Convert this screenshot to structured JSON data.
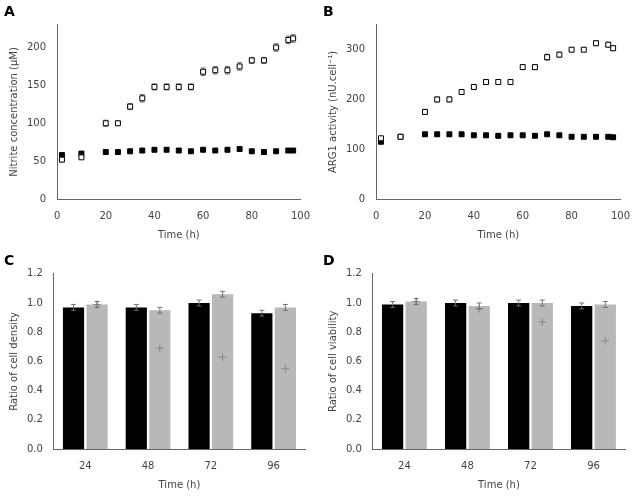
{
  "chart_data": [
    {
      "type": "scatter",
      "title": "A",
      "xlabel": "Time (h)",
      "ylabel": "Nitrite concentration (μM)",
      "xlim": [
        0,
        100
      ],
      "xticks": [
        0,
        20,
        40,
        60,
        80,
        100
      ],
      "ylim": [
        0,
        230
      ],
      "yticks": [
        0,
        50,
        100,
        150,
        200
      ],
      "grid": false,
      "x": [
        2,
        10,
        20,
        25,
        30,
        35,
        40,
        45,
        50,
        55,
        60,
        65,
        70,
        75,
        80,
        85,
        90,
        95,
        97
      ],
      "series": [
        {
          "color": "#000000",
          "marker": "open_square",
          "values": [
            52,
            55,
            100,
            100,
            122,
            133,
            148,
            148,
            148,
            148,
            168,
            170,
            170,
            175,
            183,
            183,
            200,
            210,
            212
          ],
          "yerr": [
            3,
            2,
            4,
            3,
            4,
            5,
            4,
            4,
            4,
            4,
            5,
            5,
            5,
            5,
            4,
            4,
            5,
            5,
            5
          ]
        },
        {
          "color": "#000000",
          "marker": "square",
          "values": [
            58,
            60,
            62,
            62,
            63,
            64,
            65,
            65,
            64,
            63,
            65,
            64,
            65,
            66,
            63,
            62,
            63,
            64,
            64
          ],
          "yerr": [
            2,
            2,
            3,
            2,
            2,
            2,
            2,
            2,
            2,
            2,
            2,
            2,
            2,
            2,
            2,
            2,
            2,
            2,
            2
          ]
        }
      ]
    },
    {
      "type": "scatter",
      "title": "B",
      "xlabel": "Time (h)",
      "ylabel": "ARG1 activity (nU.cell⁻¹)",
      "xlim": [
        0,
        100
      ],
      "xticks": [
        0,
        20,
        40,
        60,
        80,
        100
      ],
      "ylim": [
        0,
        350
      ],
      "yticks": [
        0,
        100,
        200,
        300
      ],
      "grid": false,
      "x": [
        2,
        10,
        20,
        25,
        30,
        35,
        40,
        45,
        50,
        55,
        60,
        65,
        70,
        75,
        80,
        85,
        90,
        95,
        97
      ],
      "series": [
        {
          "color": "#000000",
          "marker": "open_square",
          "values": [
            122,
            125,
            175,
            200,
            200,
            215,
            225,
            235,
            235,
            235,
            265,
            265,
            285,
            290,
            300,
            300,
            313,
            310,
            303
          ],
          "yerr": [
            3,
            3,
            5,
            5,
            5,
            5,
            4,
            5,
            5,
            4,
            5,
            5,
            6,
            5,
            4,
            4,
            5,
            5,
            5
          ]
        },
        {
          "color": "#000000",
          "marker": "square",
          "values": [
            115,
            125,
            130,
            130,
            130,
            130,
            128,
            128,
            127,
            128,
            128,
            127,
            130,
            128,
            125,
            125,
            125,
            125,
            124
          ],
          "yerr": [
            3,
            3,
            3,
            3,
            3,
            3,
            3,
            3,
            3,
            3,
            3,
            3,
            3,
            3,
            3,
            3,
            3,
            3,
            3
          ]
        }
      ]
    },
    {
      "type": "bar",
      "title": "C",
      "xlabel": "Time (h)",
      "ylabel": "Ratio of cell density",
      "categories": [
        "24",
        "48",
        "72",
        "96"
      ],
      "ylim": [
        0.0,
        1.2
      ],
      "yticks": [
        {
          "value": 0.0,
          "label": "0.0"
        },
        0.2,
        0.4,
        0.6,
        0.8,
        {
          "value": 1.0,
          "label": "1.0"
        },
        1.2
      ],
      "grid": false,
      "series": [
        {
          "color": "#000000",
          "values": [
            0.97,
            0.97,
            1.0,
            0.93
          ],
          "yerr": [
            0.02,
            0.02,
            0.02,
            0.02
          ]
        },
        {
          "color": "#b8b8b8",
          "values": [
            0.99,
            0.95,
            1.06,
            0.97
          ],
          "yerr": [
            0.02,
            0.02,
            0.02,
            0.02
          ]
        },
        {
          "type": "scatter",
          "marker": "plus",
          "color": "#888888",
          "values": [
            0.99,
            0.69,
            0.63,
            0.55
          ]
        }
      ]
    },
    {
      "type": "bar",
      "title": "D",
      "xlabel": "Time (h)",
      "ylabel": "Ratio of cell viability",
      "categories": [
        "24",
        "48",
        "72",
        "96"
      ],
      "ylim": [
        0.0,
        1.2
      ],
      "yticks": [
        {
          "value": 0.0,
          "label": "0.0"
        },
        0.2,
        0.4,
        0.6,
        0.8,
        {
          "value": 1.0,
          "label": "1.0"
        },
        1.2
      ],
      "grid": false,
      "series": [
        {
          "color": "#000000",
          "values": [
            0.99,
            1.0,
            1.0,
            0.98
          ],
          "yerr": [
            0.02,
            0.02,
            0.02,
            0.02
          ]
        },
        {
          "color": "#b8b8b8",
          "values": [
            1.01,
            0.98,
            1.0,
            0.99
          ],
          "yerr": [
            0.02,
            0.02,
            0.02,
            0.02
          ]
        },
        {
          "type": "scatter",
          "marker": "plus",
          "color": "#888888",
          "values": [
            1.01,
            0.96,
            0.87,
            0.74
          ]
        }
      ]
    }
  ]
}
